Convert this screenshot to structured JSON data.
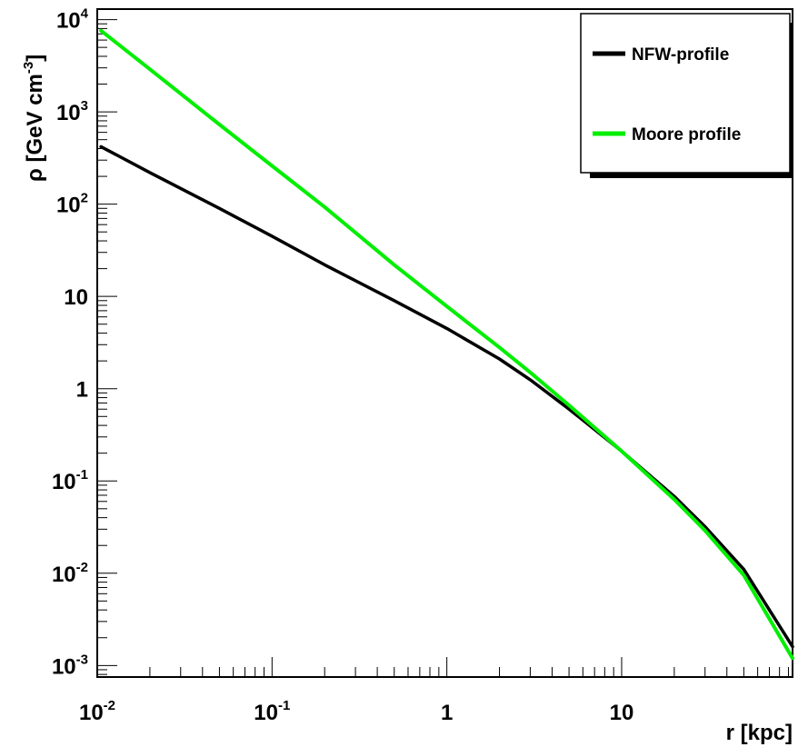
{
  "chart_data": {
    "type": "line",
    "title": "",
    "xlabel": "r [kpc]",
    "ylabel": "ρ [GeV cm",
    "ylabel_exponent": "-3",
    "ylabel_close": "]",
    "xscale": "log",
    "yscale": "log",
    "xlim": [
      0.01,
      95
    ],
    "ylim": [
      0.00075,
      13000
    ],
    "grid": false,
    "legend_position": "top-right",
    "x_ticks": [
      {
        "value": 0.01,
        "base": "10",
        "exp": "-2"
      },
      {
        "value": 0.1,
        "base": "10",
        "exp": "-1"
      },
      {
        "value": 1,
        "base": "1",
        "exp": ""
      },
      {
        "value": 10,
        "base": "10",
        "exp": ""
      }
    ],
    "y_ticks": [
      {
        "value": 0.001,
        "base": "10",
        "exp": "-3"
      },
      {
        "value": 0.01,
        "base": "10",
        "exp": "-2"
      },
      {
        "value": 0.1,
        "base": "10",
        "exp": "-1"
      },
      {
        "value": 1,
        "base": "1",
        "exp": ""
      },
      {
        "value": 10,
        "base": "10",
        "exp": ""
      },
      {
        "value": 100,
        "base": "10",
        "exp": "2"
      },
      {
        "value": 1000,
        "base": "10",
        "exp": "3"
      },
      {
        "value": 10000,
        "base": "10",
        "exp": "4"
      }
    ],
    "series": [
      {
        "name": "NFW-profile",
        "color": "#000000",
        "x": [
          0.0105,
          0.02,
          0.05,
          0.1,
          0.2,
          0.5,
          1,
          2,
          3,
          5,
          10,
          20,
          30,
          50,
          95
        ],
        "y": [
          420,
          220,
          90,
          45,
          22,
          9,
          4.5,
          2.1,
          1.25,
          0.6,
          0.21,
          0.068,
          0.032,
          0.011,
          0.0016
        ]
      },
      {
        "name": "Moore profile",
        "color": "#00ee00",
        "x": [
          0.0105,
          0.02,
          0.05,
          0.1,
          0.2,
          0.5,
          1,
          2,
          3,
          5,
          10,
          20,
          30,
          50,
          95
        ],
        "y": [
          7600,
          2900,
          730,
          260,
          93,
          22,
          7.8,
          2.8,
          1.5,
          0.66,
          0.21,
          0.063,
          0.029,
          0.0095,
          0.0012
        ]
      }
    ]
  }
}
